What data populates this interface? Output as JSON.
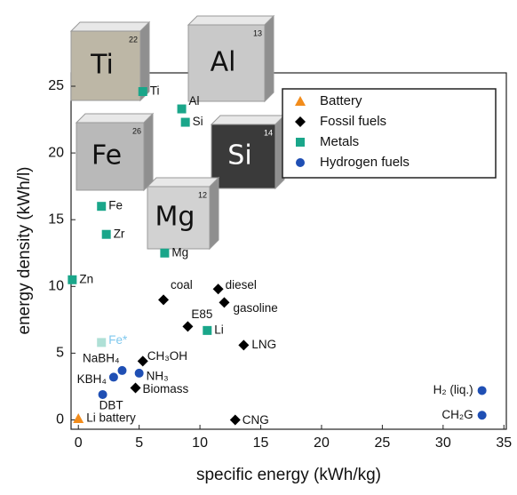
{
  "chart_data": {
    "type": "scatter",
    "x_label": "specific energy (kWh/kg)",
    "y_label": "energy density (kWh/l)",
    "xlim": [
      -0.6,
      35.2
    ],
    "ylim": [
      -0.7,
      26
    ],
    "xticks": [
      0,
      5,
      10,
      15,
      20,
      25,
      30,
      35
    ],
    "yticks": [
      0,
      5,
      10,
      15,
      20,
      25
    ],
    "legend": "upper right",
    "series": [
      {
        "name": "Battery",
        "color": "#f28c1b",
        "marker": "triangle",
        "x": [
          0
        ],
        "y": [
          0.1
        ],
        "labels": [
          "Li battery"
        ]
      },
      {
        "name": "Fossil fuels",
        "color": "#000000",
        "marker": "diamond",
        "x": [
          7.0,
          11.5,
          12.0,
          9.0,
          13.6,
          5.3,
          4.7,
          12.9
        ],
        "y": [
          9.0,
          9.8,
          8.8,
          7.0,
          5.6,
          4.4,
          2.4,
          0
        ],
        "labels": [
          "coal",
          "diesel",
          "gasoline",
          "E85",
          "LNG",
          "CH₃OH",
          "Biomass",
          "CNG"
        ]
      },
      {
        "name": "Metals",
        "color": "#1aa68a",
        "marker": "square",
        "x": [
          5.3,
          8.5,
          8.8,
          1.9,
          2.3,
          7.1,
          -0.5,
          10.6,
          1.9
        ],
        "y": [
          24.6,
          23.3,
          22.3,
          16.0,
          13.9,
          12.5,
          10.5,
          6.7,
          5.8
        ],
        "labels": [
          "Ti",
          "Al",
          "Si",
          "Fe",
          "Zr",
          "Mg",
          "Zn",
          "Li",
          "Fe*"
        ]
      },
      {
        "name": "Hydrogen fuels",
        "color": "#1f4fb4",
        "marker": "circle",
        "x": [
          3.6,
          2.9,
          2.0,
          5.0,
          33.2,
          33.2
        ],
        "y": [
          3.7,
          3.2,
          1.9,
          3.5,
          2.2,
          0.35
        ],
        "labels": [
          "NaBH₄",
          "KBH₄",
          "DBT",
          "NH₃",
          "H₂ (liq.)",
          "CH₂G"
        ]
      }
    ],
    "cubes": [
      {
        "symbol": "Ti",
        "number": "22"
      },
      {
        "symbol": "Al",
        "number": "13"
      },
      {
        "symbol": "Fe",
        "number": "26"
      },
      {
        "symbol": "Si",
        "number": "14"
      },
      {
        "symbol": "Mg",
        "number": "12"
      }
    ]
  }
}
